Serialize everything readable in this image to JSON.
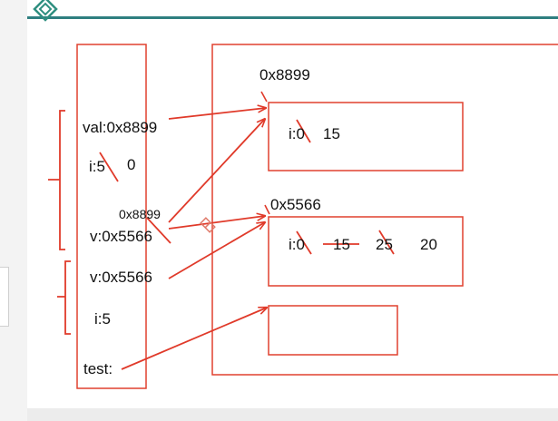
{
  "colors": {
    "pen_red": "#e03a2a",
    "box_red": "#e0412f",
    "logo_teal": "#2f8f80",
    "text": "#111111"
  },
  "logo": {
    "icon": "diamond-logo-icon"
  },
  "stack": {
    "val": "val:0x8899",
    "i_label": "i:5",
    "i_new": "0",
    "v_addr_note": "0x8899",
    "v1": "v:0x5566",
    "v2": "v:0x5566",
    "i2": "i:5",
    "test": "test:"
  },
  "heap": {
    "obj1": {
      "address": "0x8899",
      "field": "i:0",
      "value": "15"
    },
    "obj2": {
      "address": "0x5566",
      "field": "i:0",
      "values": [
        "15",
        "25",
        "20"
      ]
    }
  }
}
